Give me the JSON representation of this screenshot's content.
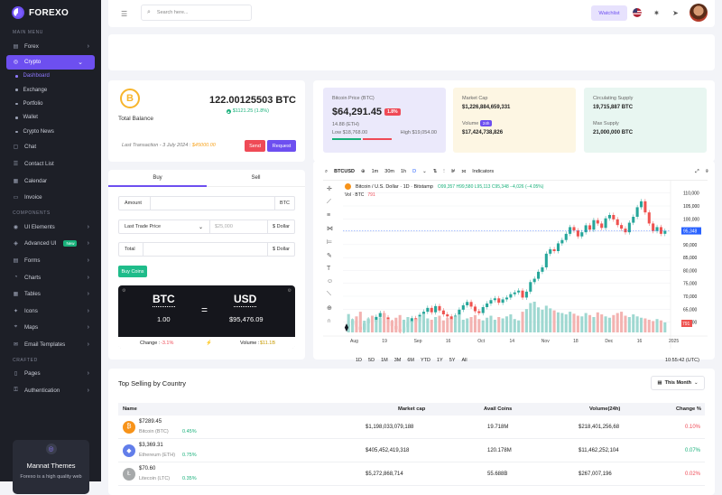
{
  "brand": {
    "name": "FOREXO"
  },
  "sidebar": {
    "sections": {
      "main": "MAIN MENU",
      "components": "COMPONENTS",
      "crafted": "CRAFTED"
    },
    "main_items": [
      {
        "label": "Forex",
        "icon": "forex-icon"
      },
      {
        "label": "Crypto",
        "icon": "crypto-icon"
      }
    ],
    "crypto_sub": [
      "Dashboard",
      "Exchange",
      "Portfolio",
      "Wallet",
      "Crypto News"
    ],
    "other_items": [
      "Chat",
      "Contact List",
      "Calendar",
      "Invoice"
    ],
    "component_items": [
      "UI Elements",
      "Advanced UI",
      "Forms",
      "Charts",
      "Tables",
      "Icons",
      "Maps",
      "Email Templates"
    ],
    "new_badge": "New",
    "crafted_items": [
      "Pages",
      "Authentication"
    ],
    "promo": {
      "title": "Mannat Themes",
      "subtitle": "Forexo is a high quality web"
    }
  },
  "topbar": {
    "search_placeholder": "Search here...",
    "watchlist": "Watchlist"
  },
  "balance": {
    "coin": "B",
    "amount": "122.00125503 BTC",
    "change": "$1121.25 (1.8%)",
    "label": "Total Balance",
    "last_tx_prefix": "Last Transaction - 3 July 2024 :",
    "last_tx_amount": "$45000.00",
    "send": "Send",
    "request": "Request"
  },
  "trade": {
    "tabs": [
      "Buy",
      "Sell"
    ],
    "amount_label": "Amount",
    "amount_suffix": "BTC",
    "price_label": "Last Trade Price",
    "price_value": "$25,000",
    "price_suffix": "$ Dollar",
    "total_label": "Total",
    "total_suffix": "$ Dollar",
    "buy_button": "Buy Coins",
    "conv": {
      "from": "BTC",
      "to": "USD",
      "from_value": "1.00",
      "to_value": "$95,476.09",
      "change_label": "Change :",
      "change_value": "-3.1%",
      "volume_label": "Volume :",
      "volume_value": "$11.1B"
    }
  },
  "stats": [
    {
      "title": "Bitcoin Price (BTC)",
      "big": "$64,291.45",
      "badge": "1.8%",
      "sub": "14.88 (ETH)",
      "low": "Low $18,768.00",
      "high": "High $19,054.00",
      "bg": "#ebe9fb"
    },
    {
      "title": "Market Cap",
      "value1": "$1,226,884,659,331",
      "label2": "Volume",
      "badge2": "24h",
      "value2": "$17,424,738,826",
      "bg": "#fdf6e3"
    },
    {
      "title": "Circulating Supply",
      "value1": "19,715,887 BTC",
      "label2": "Max Supply",
      "value2": "21,000,000 BTC",
      "bg": "#e8f6f1"
    }
  ],
  "chart": {
    "symbol": "BTCUSD",
    "intervals": [
      "1m",
      "30m",
      "1h",
      "D"
    ],
    "indicators": "Indicators",
    "legend": "Bitcoin / U.S. Dollar · 1D · Bitstamp",
    "ohlc": "O99,357  H99,580  L95,113  C95,348  −4,026 (−4.05%)",
    "vol_label": "Vol · BTC",
    "vol_value": "791",
    "price_tag": "95,348",
    "vol_tag": "791",
    "ranges": [
      "1D",
      "5D",
      "1M",
      "3M",
      "6M",
      "YTD",
      "1Y",
      "5Y",
      "All"
    ],
    "time": "10:55:42 (UTC)"
  },
  "chart_data": {
    "type": "candlestick",
    "title": "Bitcoin / U.S. Dollar · 1D · Bitstamp",
    "x_ticks": [
      "Aug",
      "19",
      "Sep",
      "16",
      "Oct",
      "14",
      "Nov",
      "18",
      "Dec",
      "16",
      "2025"
    ],
    "y_ticks": [
      60000,
      65000,
      70000,
      75000,
      80000,
      85000,
      90000,
      95000,
      100000,
      105000,
      110000
    ],
    "y_tick_labels": [
      "60,000",
      "65,000",
      "70,000",
      "75,000",
      "80,000",
      "85,000",
      "90,000",
      "95,000",
      "100,000",
      "105,000",
      "110,000"
    ],
    "ylim": [
      56000,
      112000
    ],
    "close": [
      59000,
      60500,
      58200,
      57000,
      59500,
      61000,
      60200,
      62000,
      63500,
      61800,
      60000,
      58500,
      57200,
      56500,
      58000,
      59800,
      61500,
      60400,
      62800,
      64000,
      65500,
      63800,
      66200,
      64500,
      63000,
      62200,
      60800,
      62500,
      64800,
      66500,
      67800,
      66000,
      64200,
      63500,
      65800,
      67200,
      68500,
      69200,
      67500,
      68800,
      69500,
      70800,
      71500,
      72200,
      69500,
      71800,
      75500,
      76800,
      79500,
      81200,
      86500,
      88200,
      87500,
      90500,
      91800,
      94200,
      96800,
      95500,
      93200,
      94800,
      97500,
      95800,
      99500,
      98200,
      96500,
      100200,
      101500,
      99800,
      97600,
      96200,
      94800,
      98500,
      100800,
      104500,
      106800,
      102500,
      98200,
      95300,
      96800,
      94200,
      95350
    ],
    "volume": [
      55,
      40,
      48,
      62,
      35,
      42,
      50,
      38,
      45,
      58,
      40,
      36,
      44,
      52,
      38,
      46,
      34,
      40,
      48,
      56,
      42,
      38,
      46,
      50,
      36,
      44,
      40,
      48,
      54,
      38,
      42,
      46,
      52,
      40,
      36,
      44,
      50,
      38,
      46,
      42,
      48,
      54,
      40,
      36,
      62,
      70,
      88,
      92,
      75,
      68,
      80,
      72,
      66,
      60,
      58,
      54,
      62,
      56,
      50,
      48,
      58,
      52,
      46,
      60,
      54,
      48,
      44,
      52,
      58,
      62,
      50,
      46,
      54,
      48,
      44,
      42,
      38,
      34,
      40,
      36,
      30
    ],
    "grid": true
  },
  "table": {
    "title": "Top Selling by Country",
    "filter": "This Month",
    "headers": [
      "Name",
      "Market cap",
      "Avail Coins",
      "Volume(24h)",
      "Change %"
    ],
    "rows": [
      {
        "price": "$7289.45",
        "name": "Bitcoin (BTC)",
        "chg": "0.45%",
        "cap": "$1,198,033,079,188",
        "coins": "19.718M",
        "vol": "$218,401,256,68",
        "change": "0.10%",
        "dir": "down",
        "color": "#f7931a",
        "sym": "₿"
      },
      {
        "price": "$3,369.31",
        "name": "Ethereum (ETH)",
        "chg": "0.75%",
        "cap": "$405,452,419,318",
        "coins": "120.178M",
        "vol": "$11,462,252,104",
        "change": "0.07%",
        "dir": "up",
        "color": "#627eea",
        "sym": "◆"
      },
      {
        "price": "$70.60",
        "name": "Litecoin (LTC)",
        "chg": "0.35%",
        "cap": "$5,272,868,714",
        "coins": "55.688B",
        "vol": "$267,007,196",
        "change": "0.02%",
        "dir": "down",
        "color": "#a6a9aa",
        "sym": "Ł"
      }
    ]
  }
}
